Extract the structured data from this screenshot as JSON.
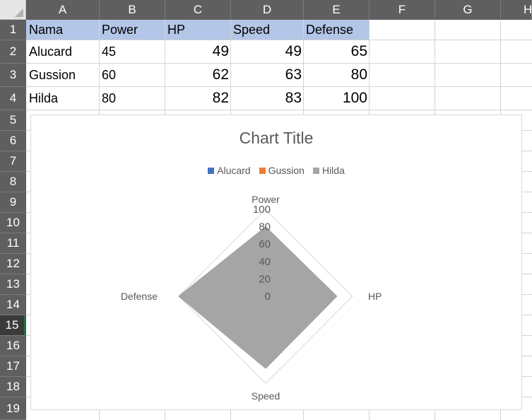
{
  "columns": [
    "A",
    "B",
    "C",
    "D",
    "E",
    "F",
    "G",
    "H"
  ],
  "rows": [
    "1",
    "2",
    "3",
    "4",
    "5",
    "6",
    "7",
    "8",
    "9",
    "10",
    "11",
    "12",
    "13",
    "14",
    "15",
    "16",
    "17",
    "18",
    "19"
  ],
  "active_row": "15",
  "table": {
    "headers": [
      "Nama",
      "Power",
      "HP",
      "Speed",
      "Defense"
    ],
    "records": [
      {
        "name": "Alucard",
        "power": "45",
        "hp": "49",
        "speed": "49",
        "defense": "65"
      },
      {
        "name": "Gussion",
        "power": "60",
        "hp": "62",
        "speed": "63",
        "defense": "80"
      },
      {
        "name": "Hilda",
        "power": "80",
        "hp": "82",
        "speed": "83",
        "defense": "100"
      }
    ]
  },
  "colors": {
    "header_band": "#b4c6e7",
    "series_alucard": "#4472c4",
    "series_gussion": "#ed7d31",
    "series_hilda": "#a5a5a5"
  },
  "chart_data": {
    "type": "radar",
    "title": "Chart Title",
    "categories": [
      "Power",
      "HP",
      "Speed",
      "Defense"
    ],
    "series": [
      {
        "name": "Alucard",
        "values": [
          45,
          49,
          49,
          65
        ]
      },
      {
        "name": "Gussion",
        "values": [
          60,
          62,
          63,
          80
        ]
      },
      {
        "name": "Hilda",
        "values": [
          80,
          82,
          83,
          100
        ]
      }
    ],
    "radial_ticks": [
      "0",
      "20",
      "40",
      "60",
      "80",
      "100"
    ],
    "rmax": 100,
    "legend_position": "top",
    "filled": true
  }
}
